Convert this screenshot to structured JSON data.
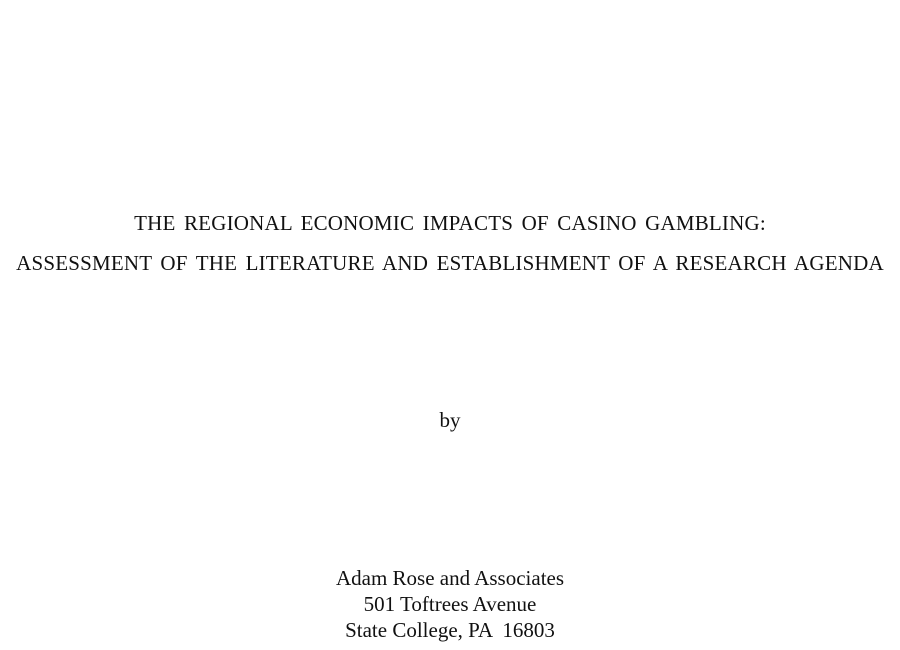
{
  "document": {
    "title_lines": [
      "THE REGIONAL ECONOMIC IMPACTS OF CASINO GAMBLING:",
      "ASSESSMENT OF THE LITERATURE AND ESTABLISHMENT OF A RESEARCH AGENDA"
    ],
    "byline": "by",
    "author_block": [
      "Adam Rose and Associates",
      "501 Toftrees Avenue",
      "State College, PA  16803"
    ]
  }
}
